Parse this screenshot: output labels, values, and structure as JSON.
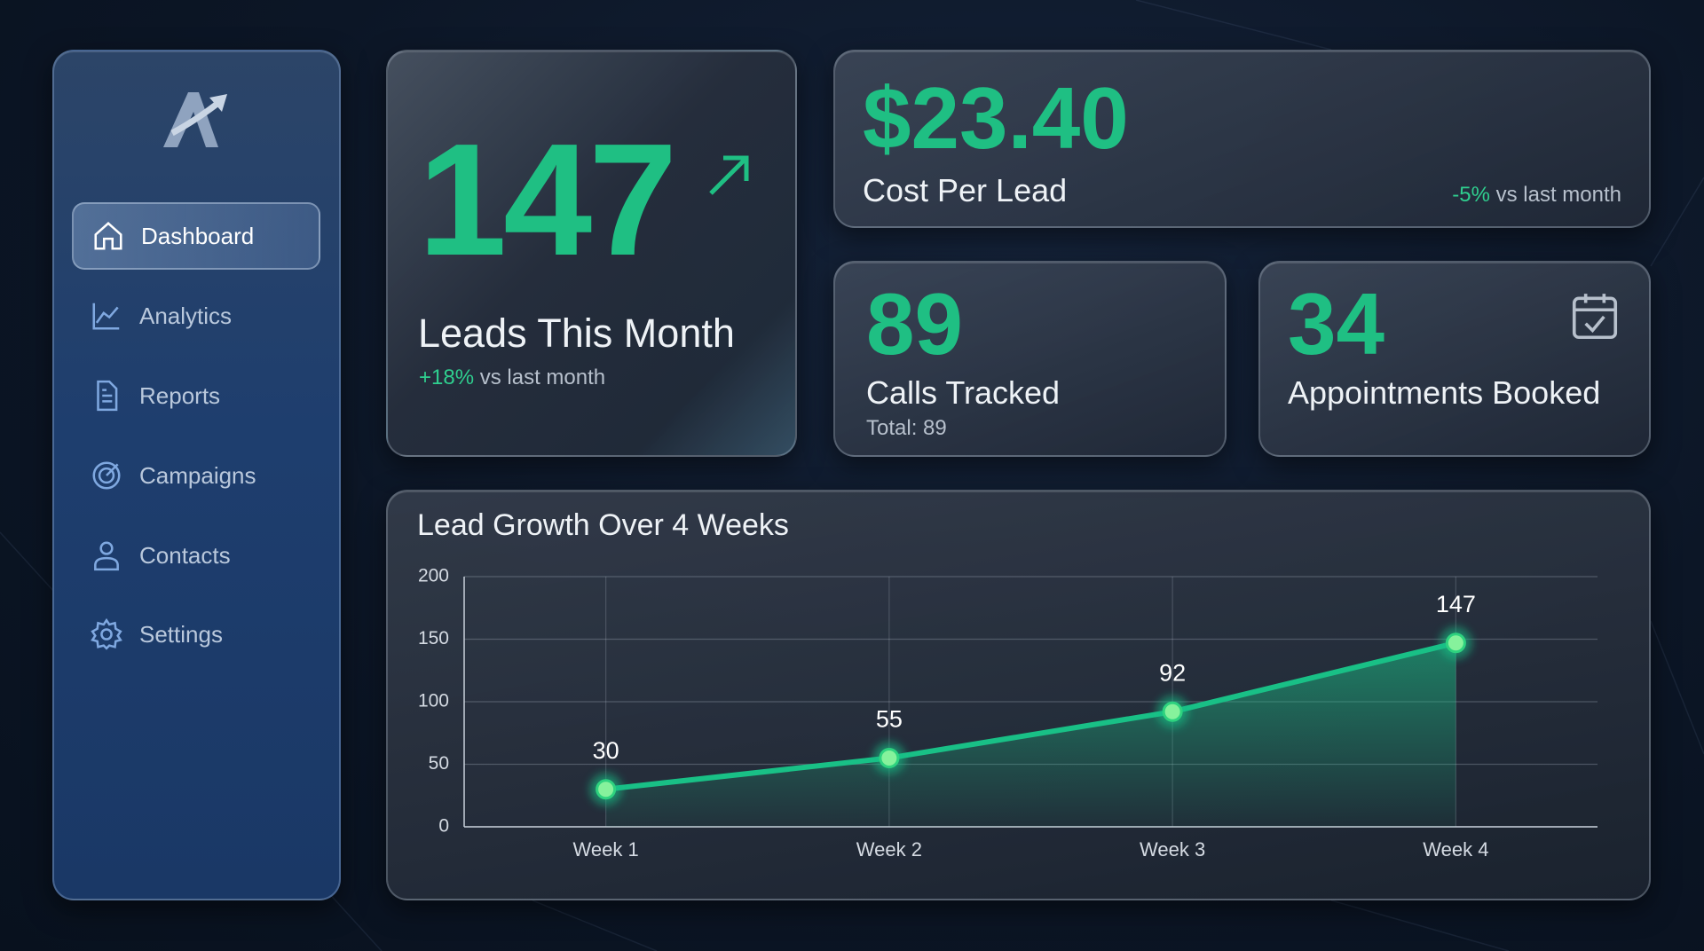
{
  "sidebar": {
    "nav": [
      "Dashboard",
      "Analytics",
      "Reports",
      "Campaigns",
      "Contacts",
      "Settings"
    ]
  },
  "kpis": {
    "leads": {
      "value": "147",
      "label": "Leads This Month",
      "change": "+18%",
      "change_suffix": "vs last month"
    },
    "cost": {
      "value": "$23.40",
      "label": "Cost Per Lead",
      "change": "-5%",
      "change_suffix": "vs last month"
    },
    "calls": {
      "value": "89",
      "label": "Calls Tracked",
      "note": "Total: 89"
    },
    "appointments": {
      "value": "34",
      "label": "Appointments Booked"
    }
  },
  "chart_data": {
    "type": "line",
    "title": "Lead Growth Over 4 Weeks",
    "categories": [
      "Week 1",
      "Week 2",
      "Week 3",
      "Week 4"
    ],
    "values": [
      30,
      55,
      92,
      147
    ],
    "color": "#19c086",
    "ylim": [
      0,
      200
    ],
    "yticks": [
      0,
      50,
      100,
      150,
      200
    ],
    "grid": true
  }
}
